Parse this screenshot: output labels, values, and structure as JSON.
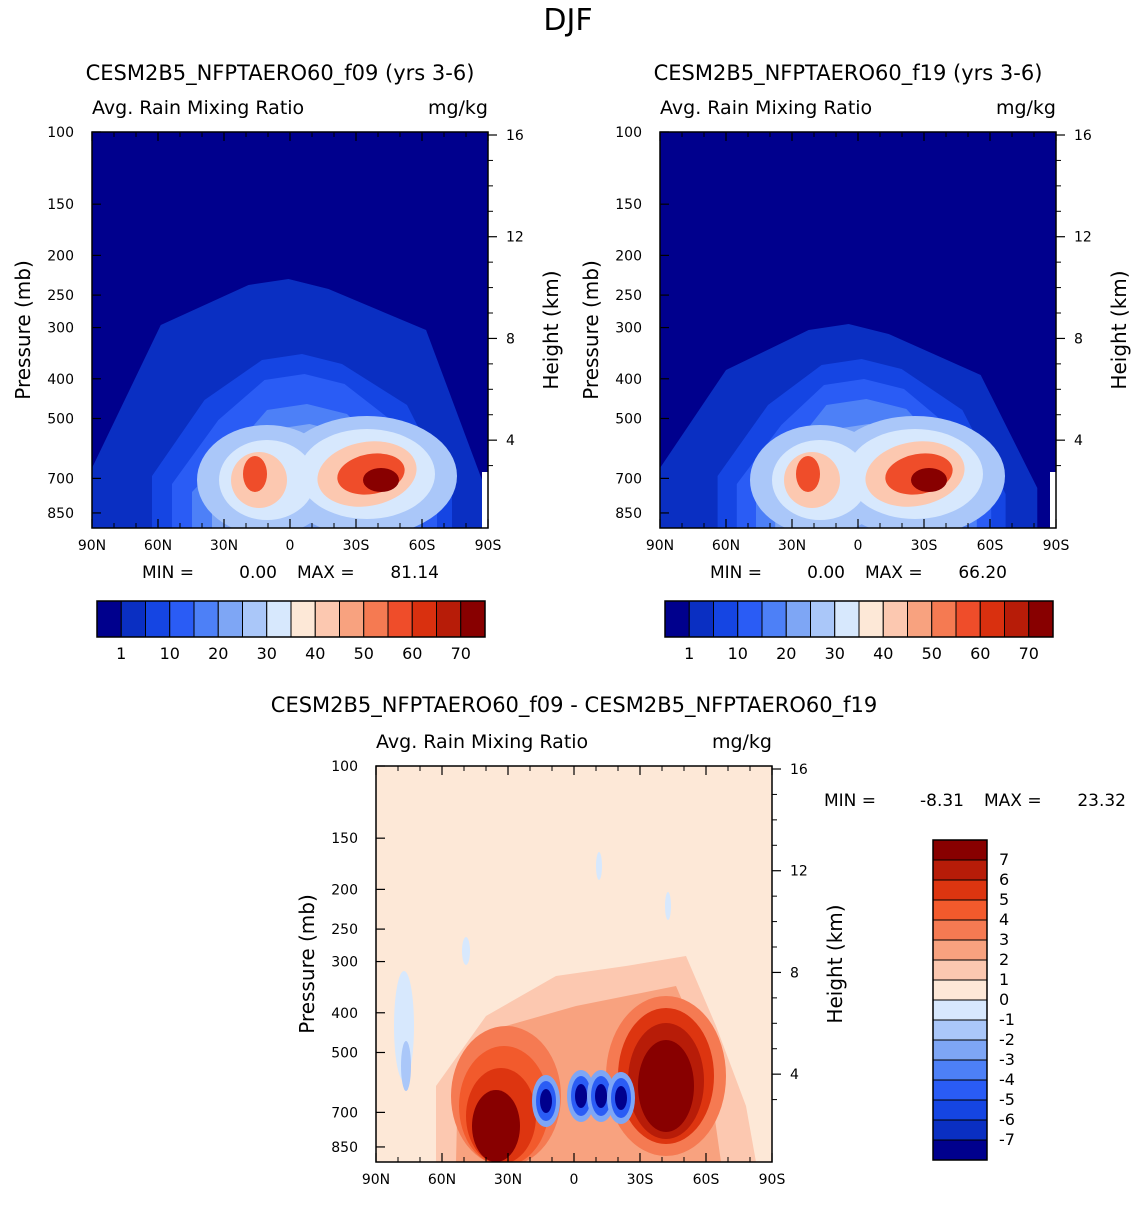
{
  "page": {
    "season": "DJF",
    "field_title": "Avg. Rain Mixing Ratio",
    "units": "mg/kg",
    "y_left_label": "Pressure (mb)",
    "y_right_label": "Height (km)",
    "min_prefix": "MIN =",
    "max_prefix": "MAX ="
  },
  "chart_data": [
    {
      "type": "heatmap",
      "title": "CESM2B5_NFPTAERO60_f09 (yrs 3-6)",
      "subtitle": "Avg. Rain Mixing Ratio",
      "units": "mg/kg",
      "xlabel": "",
      "ylabel": "Pressure (mb)",
      "y2label": "Height (km)",
      "xticks": [
        "90N",
        "60N",
        "30N",
        "0",
        "30S",
        "60S",
        "90S"
      ],
      "yticks": [
        100,
        150,
        200,
        250,
        300,
        400,
        500,
        700,
        850
      ],
      "y2ticks": [
        4,
        8,
        12,
        16
      ],
      "ylim": [
        100,
        925
      ],
      "min": "0.00",
      "max": "81.14",
      "colorbar_labels": [
        "1",
        "10",
        "20",
        "30",
        "40",
        "50",
        "60",
        "70"
      ],
      "colorbar_colors": [
        "#00008d",
        "#0a2fc2",
        "#1545e3",
        "#2a5cf5",
        "#4d80f7",
        "#7ea6f5",
        "#aac7f9",
        "#d7e8fd",
        "#fde8d7",
        "#fcc8b0",
        "#f8a27f",
        "#f57a52",
        "#ef4d2a",
        "#d9300f",
        "#b71c08",
        "#880000"
      ]
    },
    {
      "type": "heatmap",
      "title": "CESM2B5_NFPTAERO60_f19 (yrs 3-6)",
      "subtitle": "Avg. Rain Mixing Ratio",
      "units": "mg/kg",
      "xlabel": "",
      "ylabel": "Pressure (mb)",
      "y2label": "Height (km)",
      "xticks": [
        "90N",
        "60N",
        "30N",
        "0",
        "30S",
        "60S",
        "90S"
      ],
      "yticks": [
        100,
        150,
        200,
        250,
        300,
        400,
        500,
        700,
        850
      ],
      "y2ticks": [
        4,
        8,
        12,
        16
      ],
      "ylim": [
        100,
        925
      ],
      "min": "0.00",
      "max": "66.20",
      "colorbar_labels": [
        "1",
        "10",
        "20",
        "30",
        "40",
        "50",
        "60",
        "70"
      ],
      "colorbar_colors": [
        "#00008d",
        "#0a2fc2",
        "#1545e3",
        "#2a5cf5",
        "#4d80f7",
        "#7ea6f5",
        "#aac7f9",
        "#d7e8fd",
        "#fde8d7",
        "#fcc8b0",
        "#f8a27f",
        "#f57a52",
        "#ef4d2a",
        "#d9300f",
        "#b71c08",
        "#880000"
      ]
    },
    {
      "type": "heatmap",
      "title": "CESM2B5_NFPTAERO60_f09 - CESM2B5_NFPTAERO60_f19",
      "subtitle": "Avg. Rain Mixing Ratio",
      "units": "mg/kg",
      "xlabel": "",
      "ylabel": "Pressure (mb)",
      "y2label": "Height (km)",
      "xticks": [
        "90N",
        "60N",
        "30N",
        "0",
        "30S",
        "60S",
        "90S"
      ],
      "yticks": [
        100,
        150,
        200,
        250,
        300,
        400,
        500,
        700,
        850
      ],
      "y2ticks": [
        4,
        8,
        12,
        16
      ],
      "ylim": [
        100,
        925
      ],
      "min": "-8.31",
      "max": "23.32",
      "colorbar_labels": [
        "7",
        "6",
        "5",
        "4",
        "3",
        "2",
        "1",
        "0",
        "-1",
        "-2",
        "-3",
        "-4",
        "-5",
        "-6",
        "-7"
      ],
      "colorbar_colors": [
        "#880000",
        "#b71c08",
        "#dd3510",
        "#f25a2c",
        "#f57a52",
        "#f8a27f",
        "#fcc8b0",
        "#fde8d7",
        "#d7e8fd",
        "#aac7f9",
        "#7ea6f5",
        "#4d80f7",
        "#2a5cf5",
        "#1545e3",
        "#0a2fc2",
        "#00008d"
      ]
    }
  ]
}
